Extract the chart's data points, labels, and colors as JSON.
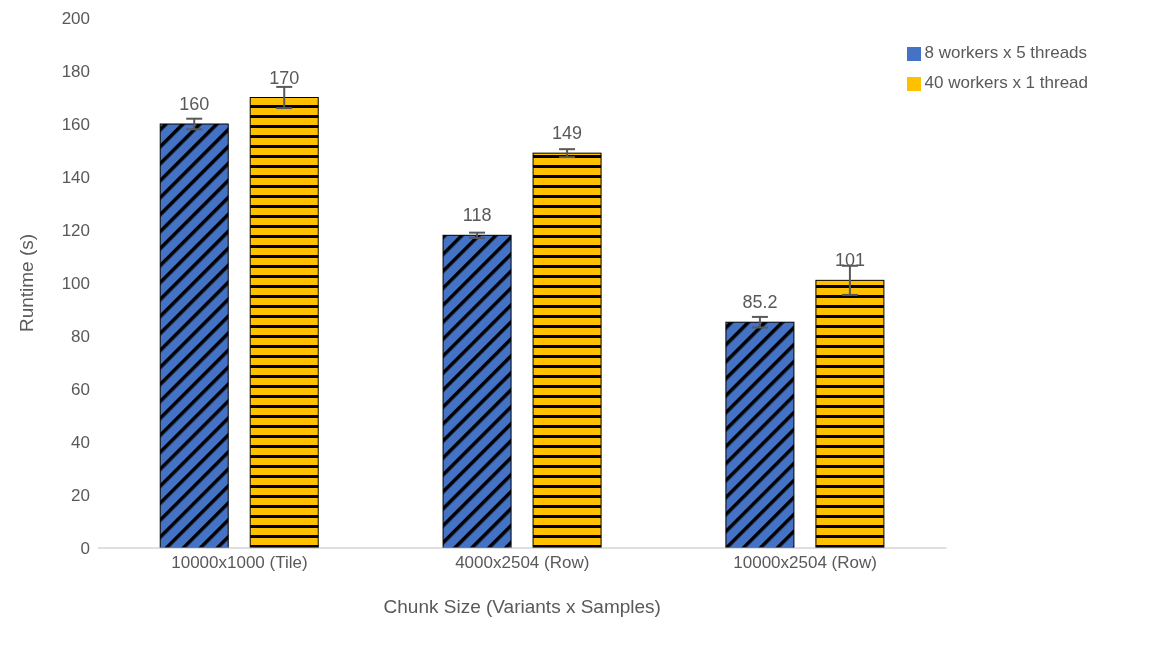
{
  "chart_data": {
    "type": "bar",
    "xlabel": "Chunk Size (Variants x Samples)",
    "ylabel": "Runtime (s)",
    "categories": [
      "10000x1000 (Tile)",
      "4000x2504 (Row)",
      "10000x2504 (Row)"
    ],
    "series": [
      {
        "name": "8 workers x 5 threads",
        "color": "#4472c4",
        "values": [
          160,
          118,
          85.2
        ],
        "errors": [
          2,
          1,
          2
        ]
      },
      {
        "name": "40 workers x 1 thread",
        "color": "#ffc000",
        "values": [
          170,
          149,
          101
        ],
        "errors": [
          4,
          1.5,
          5.5
        ]
      }
    ],
    "ylim": [
      0,
      200
    ],
    "yticks": [
      0,
      20,
      40,
      60,
      80,
      100,
      120,
      140,
      160,
      180,
      200
    ],
    "grid": false,
    "legend": "top right",
    "data_labels": true
  }
}
